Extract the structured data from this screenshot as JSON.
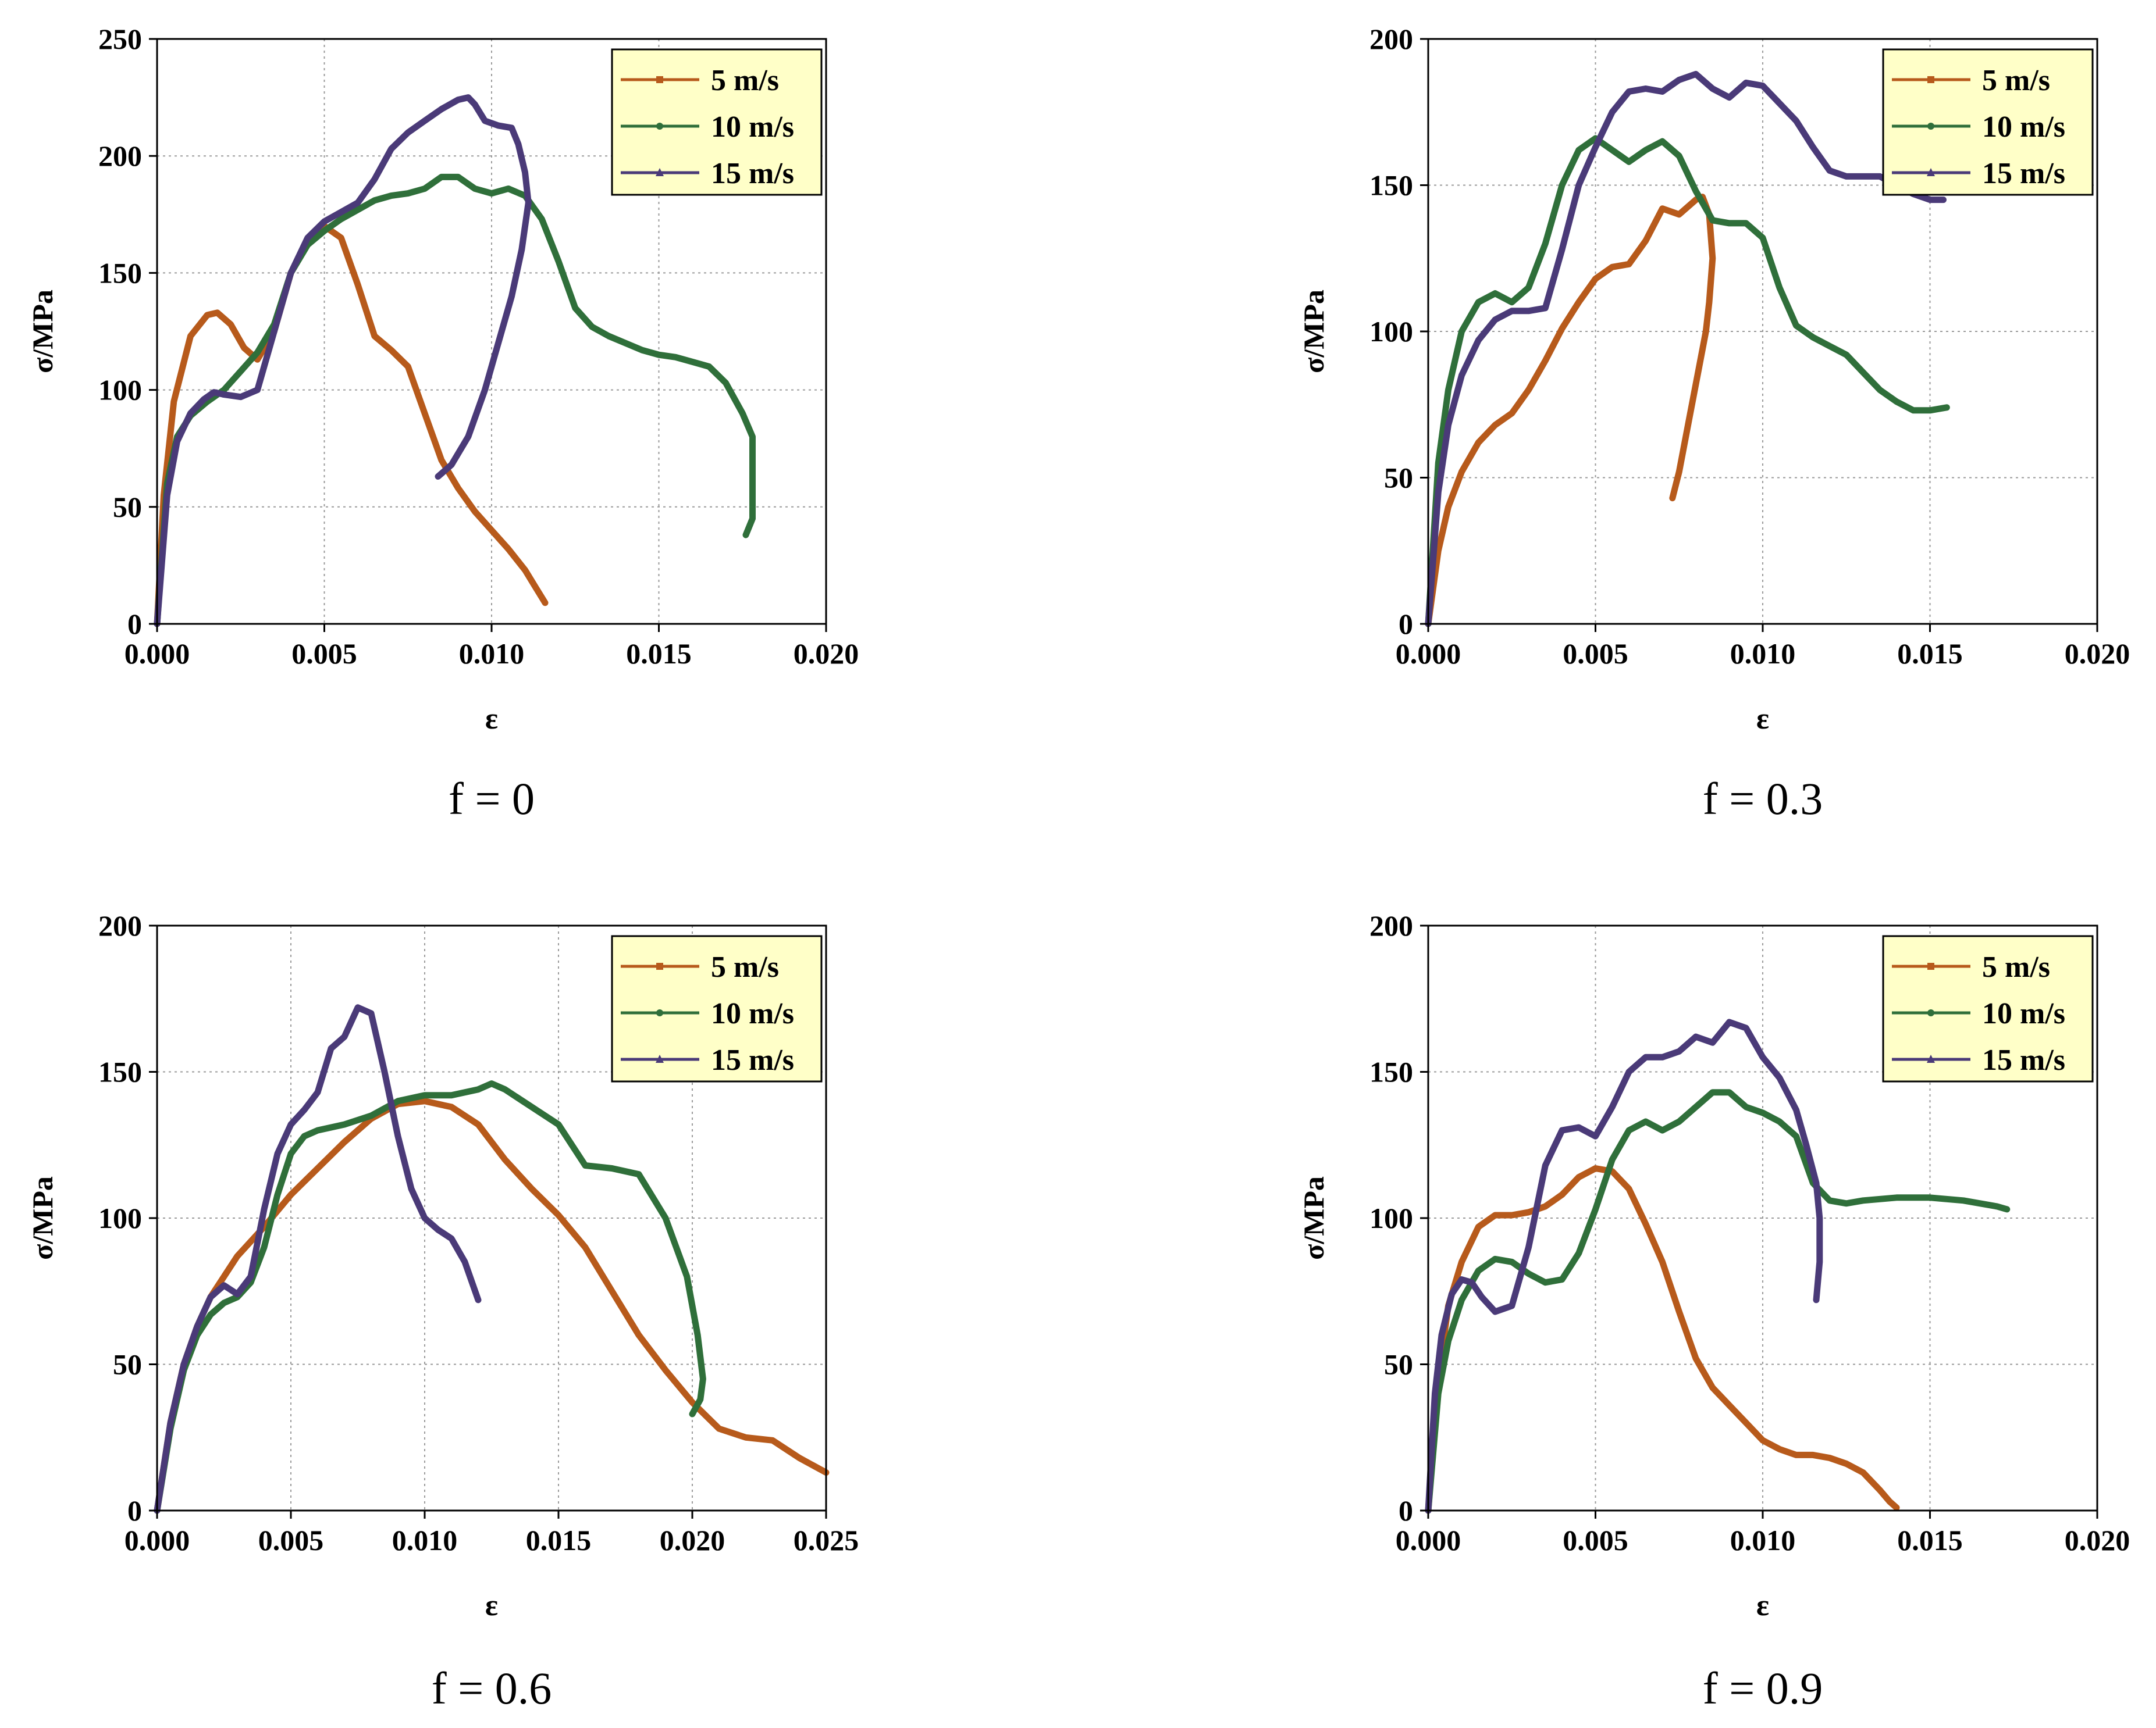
{
  "series_style": [
    {
      "name": "5 m/s",
      "color": "#b75a1b",
      "marker": "square"
    },
    {
      "name": "10 m/s",
      "color": "#2f6f3a",
      "marker": "circle"
    },
    {
      "name": "15 m/s",
      "color": "#4a3a78",
      "marker": "triangle"
    }
  ],
  "legend_bg": "#ffffc8",
  "chart_data": [
    {
      "type": "line",
      "caption": "f = 0",
      "xlabel": "ε",
      "ylabel": "σ/MPa",
      "xlim": [
        0,
        0.02
      ],
      "ylim": [
        0,
        250
      ],
      "xticks": [
        0,
        0.005,
        0.01,
        0.015,
        0.02
      ],
      "xtick_labels": [
        "0.000",
        "0.005",
        "0.010",
        "0.015",
        "0.020"
      ],
      "yticks": [
        0,
        50,
        100,
        150,
        200,
        250
      ],
      "ytick_labels": [
        "0",
        "50",
        "100",
        "150",
        "200",
        "250"
      ],
      "legend_position": "top-right",
      "grid": true,
      "series": [
        {
          "name": "5 m/s",
          "x": [
            0,
            0.0002,
            0.0005,
            0.001,
            0.0015,
            0.0018,
            0.0022,
            0.0026,
            0.003,
            0.0035,
            0.004,
            0.0045,
            0.005,
            0.0055,
            0.006,
            0.0065,
            0.007,
            0.0075,
            0.008,
            0.0085,
            0.009,
            0.0095,
            0.01,
            0.0105,
            0.011,
            0.0113,
            0.0116
          ],
          "y": [
            0,
            55,
            95,
            123,
            132,
            133,
            128,
            118,
            113,
            125,
            150,
            163,
            170,
            165,
            145,
            123,
            117,
            110,
            90,
            70,
            58,
            48,
            40,
            32,
            23,
            16,
            9
          ]
        },
        {
          "name": "10 m/s",
          "x": [
            0,
            0.0003,
            0.0006,
            0.001,
            0.0015,
            0.002,
            0.0025,
            0.003,
            0.0035,
            0.004,
            0.0045,
            0.005,
            0.0055,
            0.006,
            0.0065,
            0.007,
            0.0075,
            0.008,
            0.0085,
            0.009,
            0.0095,
            0.01,
            0.0105,
            0.011,
            0.0115,
            0.012,
            0.0125,
            0.013,
            0.0135,
            0.014,
            0.0145,
            0.015,
            0.0155,
            0.016,
            0.0165,
            0.017,
            0.0175,
            0.0178,
            0.0178,
            0.0178,
            0.0176
          ],
          "y": [
            0,
            60,
            80,
            89,
            95,
            100,
            108,
            116,
            128,
            150,
            162,
            168,
            173,
            177,
            181,
            183,
            184,
            186,
            191,
            191,
            186,
            184,
            186,
            183,
            173,
            155,
            135,
            127,
            123,
            120,
            117,
            115,
            114,
            112,
            110,
            103,
            90,
            80,
            60,
            45,
            38
          ]
        },
        {
          "name": "15 m/s",
          "x": [
            0,
            0.0003,
            0.0006,
            0.001,
            0.0014,
            0.0017,
            0.002,
            0.0025,
            0.003,
            0.0035,
            0.004,
            0.0045,
            0.005,
            0.0055,
            0.006,
            0.0065,
            0.007,
            0.0075,
            0.008,
            0.0085,
            0.009,
            0.0093,
            0.0095,
            0.0098,
            0.0102,
            0.0106,
            0.0108,
            0.011,
            0.0111,
            0.0109,
            0.0106,
            0.0102,
            0.0098,
            0.0093,
            0.0088,
            0.0084
          ],
          "y": [
            0,
            55,
            78,
            90,
            96,
            99,
            98,
            97,
            100,
            125,
            150,
            165,
            172,
            176,
            180,
            190,
            203,
            210,
            215,
            220,
            224,
            225,
            222,
            215,
            213,
            212,
            205,
            193,
            180,
            160,
            140,
            120,
            100,
            80,
            68,
            63
          ]
        }
      ]
    },
    {
      "type": "line",
      "caption": "f = 0.3",
      "xlabel": "ε",
      "ylabel": "σ/MPa",
      "xlim": [
        0,
        0.02
      ],
      "ylim": [
        0,
        200
      ],
      "xticks": [
        0,
        0.005,
        0.01,
        0.015,
        0.02
      ],
      "xtick_labels": [
        "0.000",
        "0.005",
        "0.010",
        "0.015",
        "0.020"
      ],
      "yticks": [
        0,
        50,
        100,
        150,
        200
      ],
      "ytick_labels": [
        "0",
        "50",
        "100",
        "150",
        "200"
      ],
      "legend_position": "top-right",
      "grid": true,
      "series": [
        {
          "name": "5 m/s",
          "x": [
            0,
            0.0003,
            0.0006,
            0.001,
            0.0015,
            0.002,
            0.0025,
            0.003,
            0.0035,
            0.004,
            0.0045,
            0.005,
            0.0055,
            0.006,
            0.0065,
            0.007,
            0.0075,
            0.008,
            0.0082,
            0.0084,
            0.0085,
            0.0084,
            0.0083,
            0.0081,
            0.0078,
            0.0075,
            0.0073
          ],
          "y": [
            0,
            25,
            40,
            52,
            62,
            68,
            72,
            80,
            90,
            101,
            110,
            118,
            122,
            123,
            131,
            142,
            140,
            145,
            146,
            140,
            125,
            110,
            100,
            88,
            70,
            52,
            43
          ]
        },
        {
          "name": "10 m/s",
          "x": [
            0,
            0.0003,
            0.0006,
            0.001,
            0.0015,
            0.002,
            0.0025,
            0.003,
            0.0035,
            0.004,
            0.0045,
            0.005,
            0.0055,
            0.006,
            0.0065,
            0.007,
            0.0075,
            0.008,
            0.0085,
            0.009,
            0.0095,
            0.01,
            0.0105,
            0.011,
            0.0115,
            0.012,
            0.0125,
            0.013,
            0.0135,
            0.014,
            0.0145,
            0.015,
            0.0155
          ],
          "y": [
            0,
            55,
            80,
            100,
            110,
            113,
            110,
            115,
            130,
            150,
            162,
            166,
            162,
            158,
            162,
            165,
            160,
            148,
            138,
            137,
            137,
            132,
            115,
            102,
            98,
            95,
            92,
            86,
            80,
            76,
            73,
            73,
            74
          ]
        },
        {
          "name": "15 m/s",
          "x": [
            0,
            0.0003,
            0.0006,
            0.001,
            0.0015,
            0.002,
            0.0025,
            0.003,
            0.0035,
            0.004,
            0.0045,
            0.005,
            0.0055,
            0.006,
            0.0065,
            0.007,
            0.0075,
            0.008,
            0.0085,
            0.009,
            0.0095,
            0.01,
            0.0105,
            0.011,
            0.0115,
            0.012,
            0.0125,
            0.013,
            0.0135,
            0.014,
            0.0145,
            0.015,
            0.0154
          ],
          "y": [
            0,
            45,
            68,
            85,
            97,
            104,
            107,
            107,
            108,
            128,
            150,
            163,
            175,
            182,
            183,
            182,
            186,
            188,
            183,
            180,
            185,
            184,
            178,
            172,
            163,
            155,
            153,
            153,
            153,
            150,
            147,
            145,
            145
          ]
        }
      ]
    },
    {
      "type": "line",
      "caption": "f = 0.6",
      "xlabel": "ε",
      "ylabel": "σ/MPa",
      "xlim": [
        0,
        0.025
      ],
      "ylim": [
        0,
        200
      ],
      "xticks": [
        0,
        0.005,
        0.01,
        0.015,
        0.02,
        0.025
      ],
      "xtick_labels": [
        "0.000",
        "0.005",
        "0.010",
        "0.015",
        "0.020",
        "0.025"
      ],
      "yticks": [
        0,
        50,
        100,
        150,
        200
      ],
      "ytick_labels": [
        "0",
        "50",
        "100",
        "150",
        "200"
      ],
      "legend_position": "top-right",
      "grid": true,
      "series": [
        {
          "name": "5 m/s",
          "x": [
            0,
            0.0005,
            0.001,
            0.0015,
            0.002,
            0.0025,
            0.003,
            0.004,
            0.005,
            0.006,
            0.007,
            0.008,
            0.009,
            0.01,
            0.011,
            0.012,
            0.013,
            0.014,
            0.015,
            0.016,
            0.017,
            0.018,
            0.019,
            0.02,
            0.021,
            0.022,
            0.023,
            0.024,
            0.025
          ],
          "y": [
            0,
            30,
            50,
            63,
            73,
            80,
            87,
            97,
            108,
            117,
            126,
            134,
            139,
            140,
            138,
            132,
            120,
            110,
            101,
            90,
            75,
            60,
            48,
            37,
            28,
            25,
            24,
            18,
            13
          ]
        },
        {
          "name": "10 m/s",
          "x": [
            0,
            0.0005,
            0.001,
            0.0015,
            0.002,
            0.0025,
            0.003,
            0.0035,
            0.004,
            0.0045,
            0.005,
            0.0055,
            0.006,
            0.007,
            0.008,
            0.009,
            0.01,
            0.011,
            0.012,
            0.0125,
            0.013,
            0.014,
            0.015,
            0.016,
            0.017,
            0.018,
            0.019,
            0.0198,
            0.0202,
            0.0204,
            0.0203,
            0.02
          ],
          "y": [
            0,
            28,
            48,
            60,
            67,
            71,
            73,
            78,
            90,
            108,
            122,
            128,
            130,
            132,
            135,
            140,
            142,
            142,
            144,
            146,
            144,
            138,
            132,
            118,
            117,
            115,
            100,
            80,
            60,
            45,
            38,
            33
          ]
        },
        {
          "name": "15 m/s",
          "x": [
            0,
            0.0005,
            0.001,
            0.0015,
            0.002,
            0.0025,
            0.003,
            0.0035,
            0.004,
            0.0045,
            0.005,
            0.0055,
            0.006,
            0.0065,
            0.007,
            0.0075,
            0.008,
            0.0085,
            0.009,
            0.0095,
            0.01,
            0.0105,
            0.011,
            0.0115,
            0.012
          ],
          "y": [
            0,
            30,
            50,
            63,
            73,
            77,
            74,
            80,
            103,
            122,
            132,
            137,
            143,
            158,
            162,
            172,
            170,
            150,
            128,
            110,
            100,
            96,
            93,
            85,
            72
          ]
        }
      ]
    },
    {
      "type": "line",
      "caption": "f = 0.9",
      "xlabel": "ε",
      "ylabel": "σ/MPa",
      "xlim": [
        0,
        0.02
      ],
      "ylim": [
        0,
        200
      ],
      "xticks": [
        0,
        0.005,
        0.01,
        0.015,
        0.02
      ],
      "xtick_labels": [
        "0.000",
        "0.005",
        "0.010",
        "0.015",
        "0.020"
      ],
      "yticks": [
        0,
        50,
        100,
        150,
        200
      ],
      "ytick_labels": [
        "0",
        "50",
        "100",
        "150",
        "200"
      ],
      "legend_position": "top-right",
      "grid": true,
      "series": [
        {
          "name": "5 m/s",
          "x": [
            0,
            0.0003,
            0.0006,
            0.001,
            0.0015,
            0.002,
            0.0025,
            0.003,
            0.0035,
            0.004,
            0.0045,
            0.005,
            0.0055,
            0.006,
            0.0065,
            0.007,
            0.0075,
            0.008,
            0.0085,
            0.009,
            0.0095,
            0.01,
            0.0105,
            0.011,
            0.0115,
            0.012,
            0.0125,
            0.013,
            0.0135,
            0.0138,
            0.014
          ],
          "y": [
            0,
            45,
            70,
            85,
            97,
            101,
            101,
            102,
            104,
            108,
            114,
            117,
            116,
            110,
            98,
            85,
            68,
            52,
            42,
            36,
            30,
            24,
            21,
            19,
            19,
            18,
            16,
            13,
            7,
            3,
            1
          ]
        },
        {
          "name": "10 m/s",
          "x": [
            0,
            0.0003,
            0.0006,
            0.001,
            0.0015,
            0.002,
            0.0025,
            0.003,
            0.0035,
            0.004,
            0.0045,
            0.005,
            0.0055,
            0.006,
            0.0065,
            0.007,
            0.0075,
            0.008,
            0.0085,
            0.009,
            0.0095,
            0.01,
            0.0105,
            0.011,
            0.0115,
            0.012,
            0.0125,
            0.013,
            0.014,
            0.015,
            0.016,
            0.017,
            0.0173
          ],
          "y": [
            0,
            40,
            58,
            72,
            82,
            86,
            85,
            81,
            78,
            79,
            88,
            103,
            120,
            130,
            133,
            130,
            133,
            138,
            143,
            143,
            138,
            136,
            133,
            128,
            112,
            106,
            105,
            106,
            107,
            107,
            106,
            104,
            103
          ]
        },
        {
          "name": "15 m/s",
          "x": [
            0,
            0.0002,
            0.0004,
            0.0007,
            0.001,
            0.0013,
            0.0016,
            0.002,
            0.0025,
            0.003,
            0.0035,
            0.004,
            0.0045,
            0.005,
            0.0055,
            0.006,
            0.0065,
            0.007,
            0.0075,
            0.008,
            0.0085,
            0.009,
            0.0095,
            0.01,
            0.0105,
            0.011,
            0.0113,
            0.0116,
            0.0117,
            0.0117,
            0.0116
          ],
          "y": [
            0,
            40,
            60,
            74,
            79,
            78,
            73,
            68,
            70,
            90,
            118,
            130,
            131,
            128,
            138,
            150,
            155,
            155,
            157,
            162,
            160,
            167,
            165,
            155,
            148,
            137,
            125,
            112,
            100,
            85,
            72
          ]
        }
      ]
    }
  ]
}
